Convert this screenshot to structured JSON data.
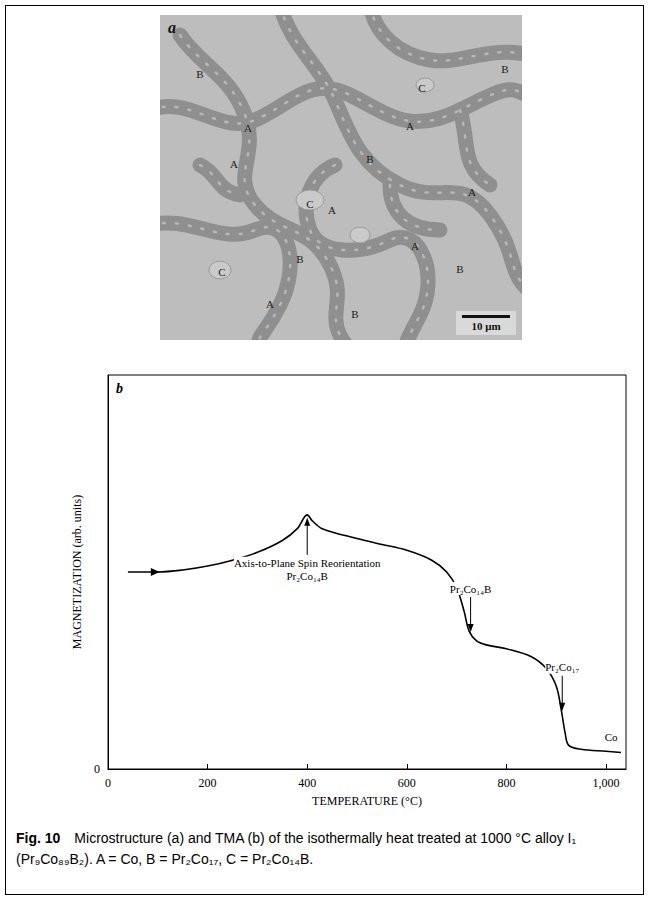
{
  "panel_a": {
    "letter": "a",
    "labels": [
      "A",
      "A",
      "A",
      "A",
      "A",
      "A",
      "A",
      "B",
      "B",
      "B",
      "B",
      "B",
      "B",
      "C",
      "C",
      "C"
    ],
    "scale_bar": "10 μm"
  },
  "chart_data": {
    "type": "line",
    "panel": "b",
    "xlabel": "TEMPERATURE (°C)",
    "ylabel": "MAGNETIZATION (arb. units)",
    "x": [
      40,
      100,
      150,
      200,
      250,
      300,
      350,
      380,
      400,
      410,
      430,
      500,
      550,
      600,
      650,
      680,
      700,
      715,
      725,
      740,
      760,
      800,
      850,
      880,
      900,
      910,
      918,
      925,
      950,
      1000,
      1030
    ],
    "values": [
      5.0,
      5.0,
      5.05,
      5.15,
      5.3,
      5.5,
      5.8,
      6.1,
      6.45,
      6.3,
      6.1,
      5.85,
      5.7,
      5.55,
      5.3,
      5.0,
      4.6,
      4.0,
      3.5,
      3.25,
      3.15,
      3.05,
      2.85,
      2.55,
      2.1,
      1.5,
      0.9,
      0.6,
      0.5,
      0.45,
      0.42
    ],
    "color": "#000000",
    "xlim": [
      0,
      1040
    ],
    "xticks": [
      0,
      200,
      400,
      600,
      800,
      1000
    ],
    "ylim": [
      0,
      10
    ],
    "yticks": [
      0
    ],
    "grid": false,
    "annotations": [
      {
        "text": [
          "Axis-to-Plane Spin Reorientation",
          "Pr₂Co₁₄B"
        ],
        "x": 400,
        "y": 6.45,
        "arrow": "up"
      },
      {
        "text": [
          "Pr₂Co₁₄B"
        ],
        "x": 728,
        "y": 3.4,
        "arrow": "down"
      },
      {
        "text": [
          "Pr₂Co₁₇"
        ],
        "x": 912,
        "y": 1.4,
        "arrow": "down"
      },
      {
        "text": [
          "Co"
        ],
        "x": 1010,
        "y": 0.44,
        "arrow": "none"
      }
    ]
  },
  "caption": {
    "label": "Fig. 10",
    "text": "Microstructure (a) and TMA (b) of the isothermally heat treated at 1000 °C alloy I₁ (Pr₉Co₈₉B₂). A = Co, B = Pr₂Co₁₇, C = Pr₂Co₁₄B."
  }
}
